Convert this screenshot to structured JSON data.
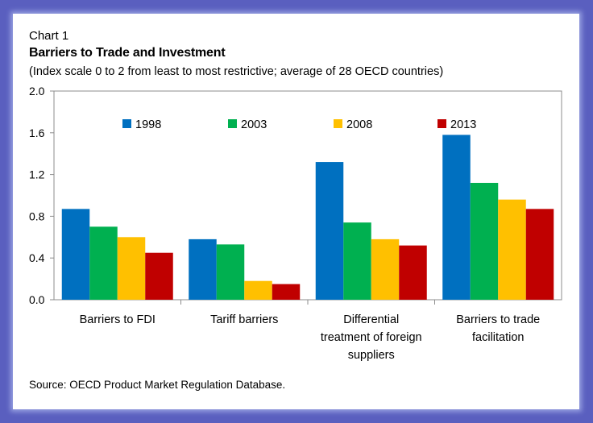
{
  "chart_label": "Chart 1",
  "title": "Barriers to Trade and Investment",
  "subtitle": "(Index scale 0 to 2 from least to most restrictive; average of 28 OECD countries)",
  "source": "Source: OECD Product Market Regulation Database.",
  "chart_data": {
    "type": "bar",
    "categories": [
      [
        "Barriers to FDI"
      ],
      [
        "Tariff barriers"
      ],
      [
        "Differential",
        "treatment of foreign",
        "suppliers"
      ],
      [
        "Barriers to trade",
        "facilitation"
      ]
    ],
    "series": [
      {
        "name": "1998",
        "color": "#0070c0",
        "values": [
          0.87,
          0.58,
          1.32,
          1.58
        ]
      },
      {
        "name": "2003",
        "color": "#00b050",
        "values": [
          0.7,
          0.53,
          0.74,
          1.12
        ]
      },
      {
        "name": "2008",
        "color": "#ffc000",
        "values": [
          0.6,
          0.18,
          0.58,
          0.96
        ]
      },
      {
        "name": "2013",
        "color": "#c00000",
        "values": [
          0.45,
          0.15,
          0.52,
          0.87
        ]
      }
    ],
    "ylim": [
      0,
      2
    ],
    "yticks": [
      "0.0",
      "0.4",
      "0.8",
      "1.2",
      "1.6",
      "2.0"
    ],
    "legend_position": "top-inside",
    "grid": false
  }
}
